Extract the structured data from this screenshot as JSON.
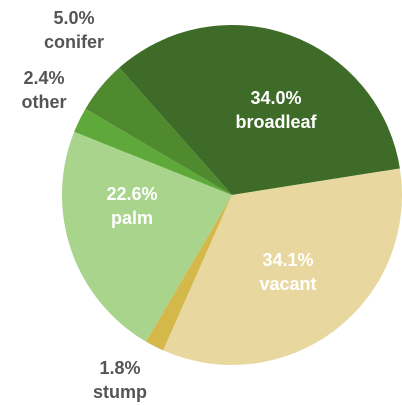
{
  "chart_data": {
    "type": "pie",
    "slices": [
      {
        "label": "broadleaf",
        "value": 34.0,
        "percent_text": "34.0%",
        "color": "#3e6b27",
        "label_style": "inside"
      },
      {
        "label": "vacant",
        "value": 34.1,
        "percent_text": "34.1%",
        "color": "#e8d8a0",
        "label_style": "inside"
      },
      {
        "label": "stump",
        "value": 1.8,
        "percent_text": "1.8%",
        "color": "#d4b84a",
        "label_style": "outside"
      },
      {
        "label": "palm",
        "value": 22.6,
        "percent_text": "22.6%",
        "color": "#a9d48c",
        "label_style": "inside"
      },
      {
        "label": "other",
        "value": 2.4,
        "percent_text": "2.4%",
        "color": "#5fa83a",
        "label_style": "outside"
      },
      {
        "label": "conifer",
        "value": 5.0,
        "percent_text": "5.0%",
        "color": "#4f8a2f",
        "label_style": "outside"
      }
    ],
    "start_angle_deg": -41.5,
    "direction": "clockwise",
    "legend": "none"
  }
}
